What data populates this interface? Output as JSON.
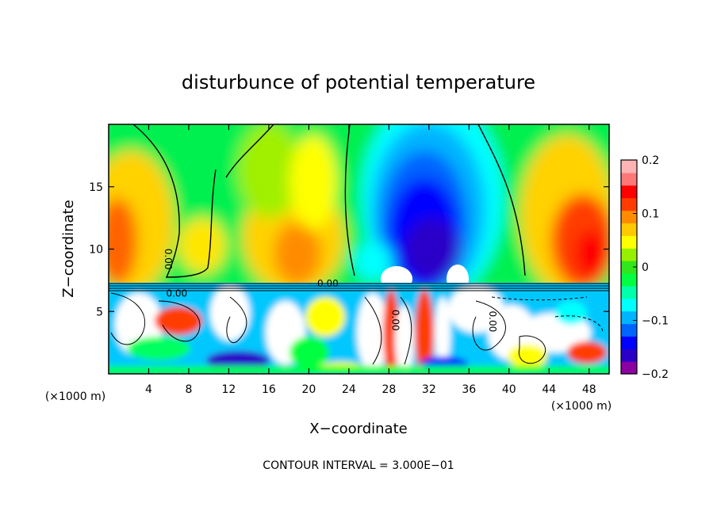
{
  "chart_data": {
    "type": "heatmap",
    "title": "disturbunce of potential temperature",
    "xlabel": "X−coordinate",
    "ylabel": "Z−coordinate",
    "x_unit_left": "(×1000 m)",
    "x_unit_right": "(×1000 m)",
    "footer": "CONTOUR INTERVAL = 3.000E−01",
    "xlim": [
      0,
      50
    ],
    "ylim": [
      0,
      20
    ],
    "x_ticks": [
      4,
      8,
      12,
      16,
      20,
      24,
      28,
      32,
      36,
      40,
      44,
      48
    ],
    "y_ticks": [
      5,
      10,
      15
    ],
    "colorbar": {
      "min": -0.2,
      "max": 0.2,
      "tick_values": [
        0.2,
        0.1,
        0,
        -0.1,
        -0.2
      ],
      "tick_labels": [
        "0.2",
        "0.1",
        "0",
        "−0.1",
        "−0.2"
      ],
      "colors": [
        "#8b00a0",
        "#2a00c8",
        "#0000ff",
        "#0064ff",
        "#00b4ff",
        "#00ffff",
        "#00ffaa",
        "#00ff40",
        "#32e61e",
        "#96f000",
        "#ffff00",
        "#ffc800",
        "#ff8c00",
        "#ff3c00",
        "#ff0000",
        "#ff7878",
        "#ffb4b4"
      ]
    },
    "contour_labels": [
      {
        "text": "0.00",
        "x": 5.9,
        "z": 9.2,
        "rotate": 90
      },
      {
        "text": "0.00",
        "x": 21.9,
        "z": 7.2,
        "rotate": 0
      },
      {
        "text": "0.00",
        "x": 28.6,
        "z": 4.3,
        "rotate": 90
      },
      {
        "text": "0.00",
        "x": 38.3,
        "z": 4.2,
        "rotate": 90
      },
      {
        "text": "0.00",
        "x": 6.8,
        "z": 6.4,
        "rotate": 0
      }
    ]
  }
}
